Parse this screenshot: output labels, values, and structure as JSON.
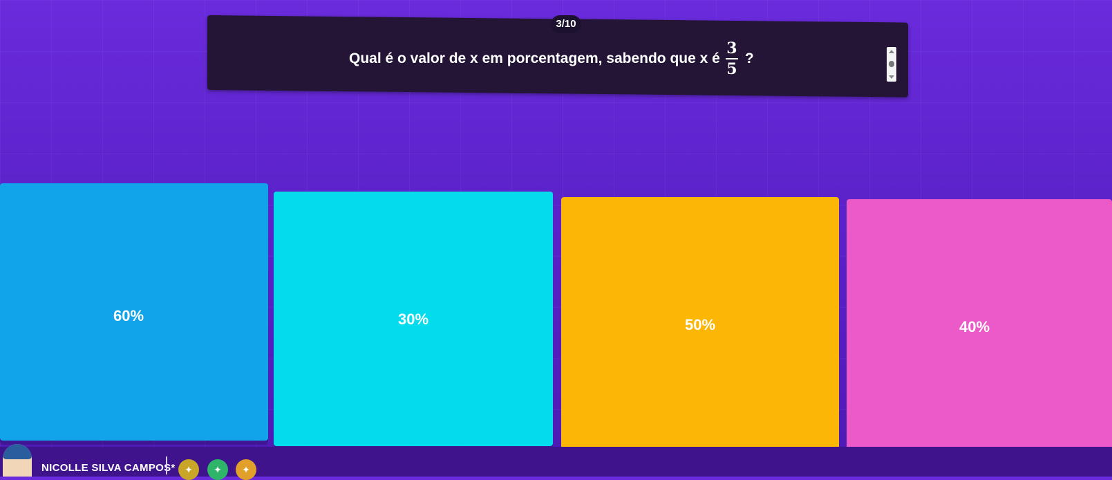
{
  "quiz": {
    "counter": "3/10",
    "question_prefix": "Qual é o valor de x em porcentagem, sabendo que x é",
    "fraction_numerator": "3",
    "fraction_denominator": "5",
    "question_suffix": "?"
  },
  "answers": [
    {
      "label": "60%",
      "color": "#12a4ea"
    },
    {
      "label": "30%",
      "color": "#04dcee"
    },
    {
      "label": "50%",
      "color": "#fbb606"
    },
    {
      "label": "40%",
      "color": "#ec59c8"
    }
  ],
  "footer": {
    "username": "NICOLLE SILVA CAMPOS*",
    "powerups": [
      {
        "icon": "powerup-icon"
      },
      {
        "icon": "powerup-icon"
      },
      {
        "icon": "powerup-icon"
      }
    ]
  },
  "colors": {
    "background": "#5b22c9",
    "question_panel": "#241537"
  }
}
